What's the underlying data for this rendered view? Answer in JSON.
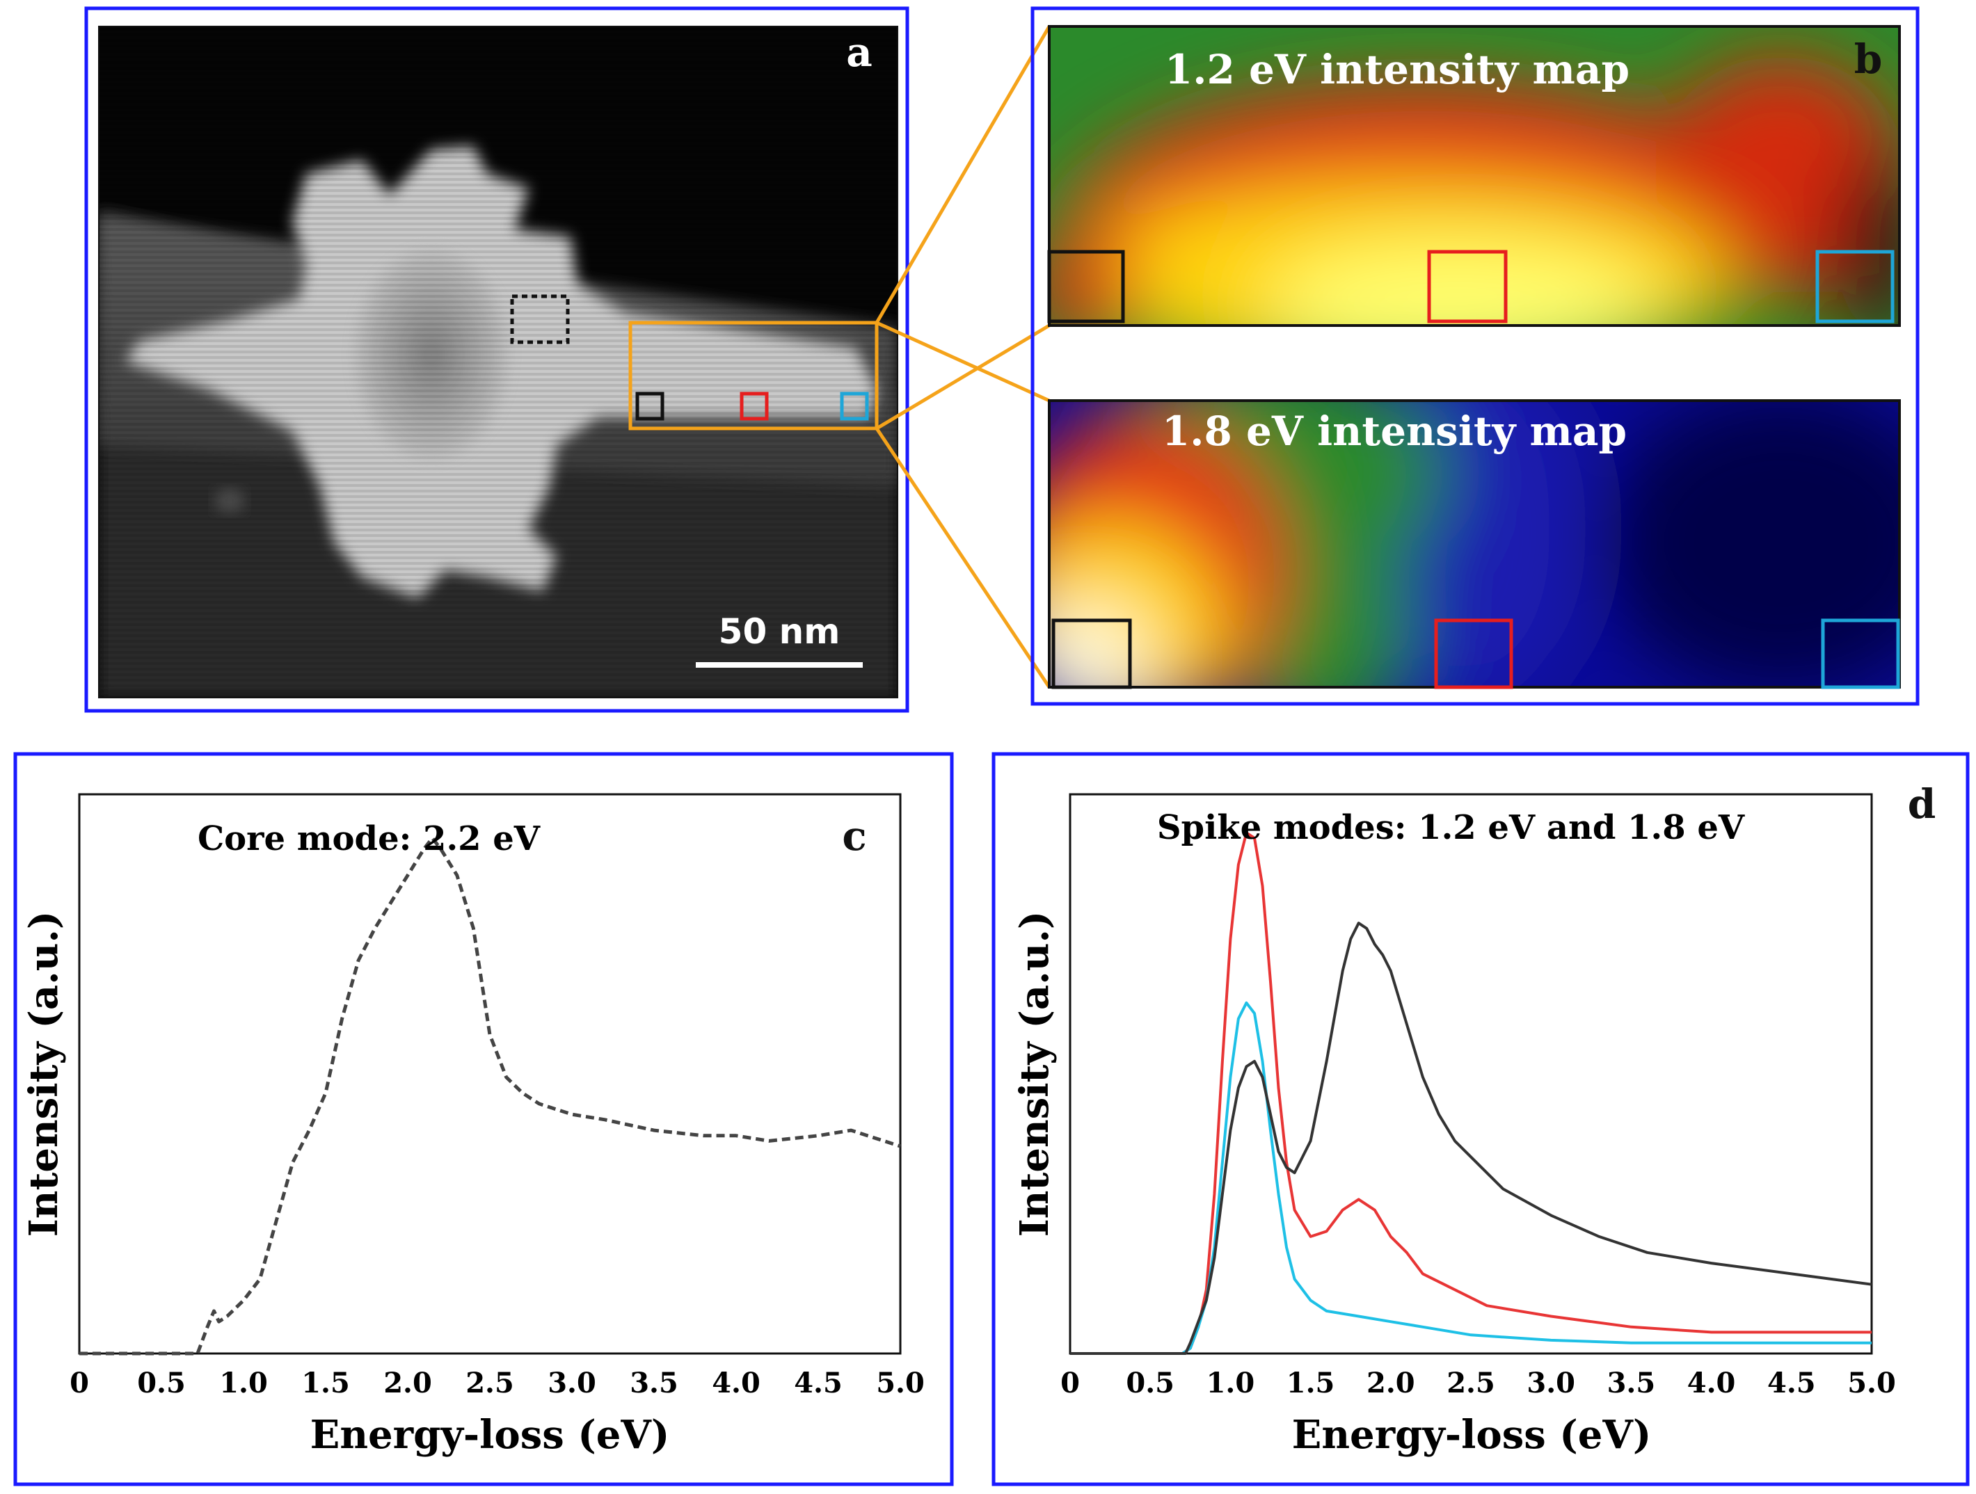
{
  "figure": {
    "panel_a": {
      "label": "a",
      "scale_bar_text": "50 nm",
      "boxes": [
        "black",
        "red",
        "cyan"
      ],
      "colors": {
        "frame": "#1a1aff",
        "zoom": "#f5a31a"
      }
    },
    "panel_b": {
      "label": "b",
      "map1_title": "1.2 eV intensity map",
      "map2_title": "1.8 eV intensity map"
    },
    "panel_c": {
      "label": "c"
    },
    "panel_d": {
      "label": "d"
    }
  },
  "chart_data": [
    {
      "id": "panel-c",
      "type": "line",
      "title": "Core mode: 2.2 eV",
      "xlabel": "Energy-loss (eV)",
      "ylabel": "Intensity (a.u.)",
      "xlim": [
        0,
        5.0
      ],
      "ylim": [
        0,
        1.0
      ],
      "xticks": [
        "0",
        "0.5",
        "1.0",
        "1.5",
        "2.0",
        "2.5",
        "3.0",
        "3.5",
        "4.0",
        "4.5",
        "5.0"
      ],
      "series": [
        {
          "name": "core",
          "color": "#444444",
          "style": "dashed",
          "x": [
            0,
            0.5,
            0.72,
            0.78,
            0.82,
            0.85,
            0.9,
            1.0,
            1.1,
            1.2,
            1.3,
            1.4,
            1.5,
            1.6,
            1.7,
            1.8,
            1.9,
            2.0,
            2.1,
            2.15,
            2.2,
            2.3,
            2.4,
            2.5,
            2.6,
            2.7,
            2.8,
            2.9,
            3.0,
            3.2,
            3.5,
            3.8,
            4.0,
            4.2,
            4.5,
            4.7,
            4.8,
            5.0
          ],
          "y": [
            0,
            0,
            0.0,
            0.05,
            0.08,
            0.06,
            0.07,
            0.1,
            0.14,
            0.25,
            0.36,
            0.42,
            0.49,
            0.63,
            0.74,
            0.8,
            0.85,
            0.9,
            0.95,
            0.97,
            0.95,
            0.9,
            0.8,
            0.6,
            0.52,
            0.49,
            0.47,
            0.46,
            0.45,
            0.44,
            0.42,
            0.41,
            0.41,
            0.4,
            0.41,
            0.42,
            0.41,
            0.39
          ]
        }
      ]
    },
    {
      "id": "panel-d",
      "type": "line",
      "title": "Spike modes: 1.2 eV and 1.8 eV",
      "xlabel": "Energy-loss (eV)",
      "ylabel": "Intensity (a.u.)",
      "xlim": [
        0,
        5.0
      ],
      "ylim": [
        0,
        1.0
      ],
      "xticks": [
        "0",
        "0.5",
        "1.0",
        "1.5",
        "2.0",
        "2.5",
        "3.0",
        "3.5",
        "4.0",
        "4.5",
        "5.0"
      ],
      "series": [
        {
          "name": "red",
          "color": "#e83535",
          "x": [
            0,
            0.7,
            0.75,
            0.8,
            0.85,
            0.9,
            0.95,
            1.0,
            1.05,
            1.1,
            1.15,
            1.2,
            1.25,
            1.3,
            1.35,
            1.4,
            1.5,
            1.6,
            1.7,
            1.8,
            1.9,
            2.0,
            2.1,
            2.2,
            2.4,
            2.6,
            3.0,
            3.5,
            4.0,
            4.5,
            5.0
          ],
          "y": [
            0,
            0,
            0.01,
            0.05,
            0.12,
            0.3,
            0.55,
            0.78,
            0.92,
            0.98,
            0.97,
            0.88,
            0.7,
            0.5,
            0.36,
            0.27,
            0.22,
            0.23,
            0.27,
            0.29,
            0.27,
            0.22,
            0.19,
            0.15,
            0.12,
            0.09,
            0.07,
            0.05,
            0.04,
            0.04,
            0.04
          ]
        },
        {
          "name": "cyan",
          "color": "#1ec0e6",
          "x": [
            0,
            0.7,
            0.75,
            0.8,
            0.85,
            0.9,
            0.95,
            1.0,
            1.05,
            1.1,
            1.15,
            1.2,
            1.25,
            1.3,
            1.35,
            1.4,
            1.5,
            1.6,
            1.8,
            2.0,
            2.2,
            2.5,
            3.0,
            3.5,
            4.0,
            4.5,
            5.0
          ],
          "y": [
            0,
            0,
            0.01,
            0.05,
            0.1,
            0.2,
            0.36,
            0.52,
            0.63,
            0.66,
            0.64,
            0.55,
            0.42,
            0.3,
            0.2,
            0.14,
            0.1,
            0.08,
            0.07,
            0.06,
            0.05,
            0.035,
            0.025,
            0.02,
            0.02,
            0.02,
            0.02
          ]
        },
        {
          "name": "black",
          "color": "#333333",
          "x": [
            0,
            0.72,
            0.75,
            0.8,
            0.85,
            0.9,
            0.95,
            1.0,
            1.05,
            1.1,
            1.15,
            1.2,
            1.25,
            1.3,
            1.35,
            1.4,
            1.5,
            1.6,
            1.7,
            1.75,
            1.8,
            1.85,
            1.9,
            1.95,
            2.0,
            2.1,
            2.2,
            2.3,
            2.4,
            2.5,
            2.7,
            3.0,
            3.3,
            3.6,
            4.0,
            4.5,
            5.0
          ],
          "y": [
            0,
            0,
            0.02,
            0.06,
            0.1,
            0.18,
            0.3,
            0.42,
            0.5,
            0.54,
            0.55,
            0.52,
            0.45,
            0.38,
            0.35,
            0.34,
            0.4,
            0.55,
            0.72,
            0.78,
            0.81,
            0.8,
            0.77,
            0.75,
            0.72,
            0.62,
            0.52,
            0.45,
            0.4,
            0.37,
            0.31,
            0.26,
            0.22,
            0.19,
            0.17,
            0.15,
            0.13
          ]
        }
      ]
    }
  ]
}
